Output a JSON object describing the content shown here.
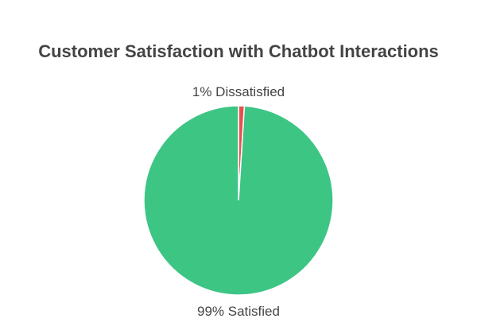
{
  "chart_data": {
    "type": "pie",
    "title": "Customer Satisfaction with Chatbot Interactions",
    "slices": [
      {
        "label": "1% Dissatisfied",
        "value": 1,
        "color": "#e8504f"
      },
      {
        "label": "99% Satisfied",
        "value": 99,
        "color": "#3dc584"
      }
    ],
    "start_angle": "top",
    "direction": "clockwise"
  }
}
